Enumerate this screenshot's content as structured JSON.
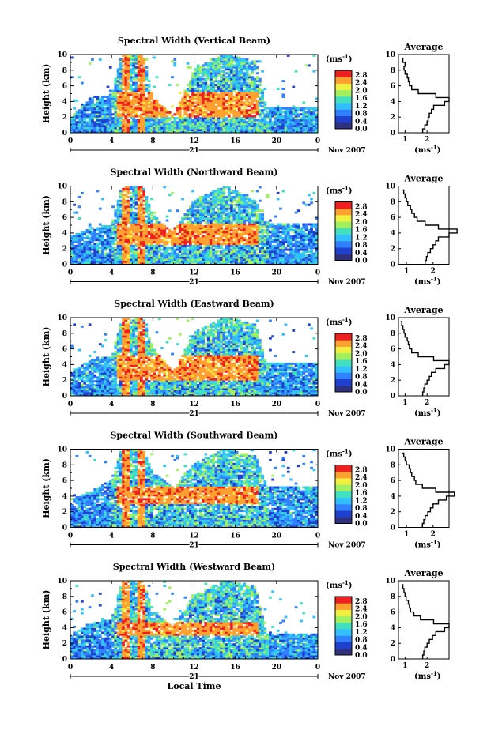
{
  "figure": {
    "colorbar_unit": "(ms",
    "colorbar_unit_exp": "-1",
    "avg_title": "Average",
    "avg_unit": "(ms",
    "avg_unit_exp": "-1",
    "y_label": "Height (km)",
    "x_label": "Local Time",
    "date_label": "Nov 2007",
    "day_label": "21",
    "x_ticks": [
      "0",
      "4",
      "8",
      "12",
      "16",
      "20",
      "0"
    ],
    "y_ticks": [
      "0",
      "2",
      "4",
      "6",
      "8",
      "10"
    ],
    "colorbar_ticks": [
      "0.0",
      "0.4",
      "0.8",
      "1.2",
      "1.6",
      "2.0",
      "2.4",
      "2.8"
    ],
    "avg_x_ticks": [
      "1",
      "2"
    ],
    "colors": {
      "c0": "#303080",
      "c1": "#2040d0",
      "c2": "#3080ff",
      "c3": "#30c0ff",
      "c4": "#40e0c0",
      "c5": "#a0f060",
      "c6": "#f0f040",
      "c7": "#ffa030",
      "c8": "#f02020"
    }
  },
  "chart_data": [
    {
      "type": "heatmap",
      "title": "Spectral Width (Vertical Beam)",
      "xlabel": "",
      "ylabel": "Height (km)",
      "xlim": [
        0,
        24
      ],
      "ylim": [
        0,
        10
      ],
      "clim": [
        0,
        3.0
      ],
      "cloud_top_km": [
        [
          0,
          1.8
        ],
        [
          2,
          4.5
        ],
        [
          4,
          4.8
        ],
        [
          5,
          10
        ],
        [
          7,
          10
        ],
        [
          8,
          4.5
        ],
        [
          10,
          2.0
        ],
        [
          12,
          8
        ],
        [
          15,
          10
        ],
        [
          18,
          9
        ],
        [
          19,
          3
        ],
        [
          24,
          3
        ]
      ],
      "strong_layer": {
        "time_hours": [
          4.5,
          18
        ],
        "height_km": [
          2.0,
          5.0
        ],
        "value_ms": 2.8
      },
      "avg_profile": {
        "title": "Average",
        "height_km": [
          0,
          0.5,
          1,
          1.5,
          2,
          2.5,
          3,
          3.5,
          4,
          4.5,
          5,
          5.5,
          6,
          6.5,
          7,
          7.5,
          8,
          8.5,
          9,
          9.5
        ],
        "value_ms": [
          1.8,
          1.9,
          2.0,
          2.05,
          2.1,
          2.2,
          2.3,
          2.8,
          3.0,
          2.4,
          1.6,
          1.3,
          1.2,
          1.15,
          1.1,
          1.0,
          0.95,
          1.0,
          0.9,
          0.85
        ],
        "xlim": [
          0.7,
          3.0
        ],
        "ylim": [
          0,
          10
        ]
      }
    },
    {
      "type": "heatmap",
      "title": "Spectral Width (Northward Beam)",
      "xlabel": "",
      "ylabel": "Height (km)",
      "xlim": [
        0,
        24
      ],
      "ylim": [
        0,
        10
      ],
      "clim": [
        0,
        3.0
      ],
      "cloud_top_km": [
        [
          0,
          3.5
        ],
        [
          2,
          4.5
        ],
        [
          4,
          5
        ],
        [
          5,
          10
        ],
        [
          7,
          10
        ],
        [
          8,
          6
        ],
        [
          10,
          4
        ],
        [
          12,
          8
        ],
        [
          15,
          10
        ],
        [
          18,
          8
        ],
        [
          19,
          5
        ],
        [
          24,
          5
        ]
      ],
      "strong_layer": {
        "time_hours": [
          4.5,
          18
        ],
        "height_km": [
          2.5,
          5.0
        ],
        "value_ms": 2.8
      },
      "avg_profile": {
        "title": "Average",
        "height_km": [
          0,
          0.5,
          1,
          1.5,
          2,
          2.5,
          3,
          3.5,
          4,
          4.5,
          5,
          5.5,
          6,
          6.5,
          7,
          7.5,
          8,
          8.5,
          9,
          9.5
        ],
        "value_ms": [
          1.7,
          1.75,
          1.8,
          1.9,
          2.0,
          2.1,
          2.2,
          2.6,
          2.9,
          2.2,
          1.7,
          1.4,
          1.3,
          1.2,
          1.15,
          1.05,
          1.0,
          0.95,
          0.9,
          0.85
        ],
        "xlim": [
          0.7,
          2.6
        ],
        "ylim": [
          0,
          10
        ]
      }
    },
    {
      "type": "heatmap",
      "title": "Spectral Width (Eastward Beam)",
      "xlabel": "",
      "ylabel": "Height (km)",
      "xlim": [
        0,
        24
      ],
      "ylim": [
        0,
        10
      ],
      "clim": [
        0,
        3.0
      ],
      "cloud_top_km": [
        [
          0,
          3.0
        ],
        [
          2,
          4.5
        ],
        [
          4,
          5
        ],
        [
          5,
          10
        ],
        [
          7,
          10
        ],
        [
          8,
          6
        ],
        [
          10,
          3
        ],
        [
          12,
          8
        ],
        [
          15,
          10
        ],
        [
          18,
          9
        ],
        [
          19,
          4
        ],
        [
          24,
          4
        ]
      ],
      "strong_layer": {
        "time_hours": [
          4.5,
          18
        ],
        "height_km": [
          2.0,
          5.0
        ],
        "value_ms": 2.8
      },
      "avg_profile": {
        "title": "Average",
        "height_km": [
          0,
          0.5,
          1,
          1.5,
          2,
          2.5,
          3,
          3.5,
          4,
          4.5,
          5,
          5.5,
          6,
          6.5,
          7,
          7.5,
          8,
          8.5,
          9,
          9.5
        ],
        "value_ms": [
          1.8,
          1.85,
          1.9,
          2.0,
          2.1,
          2.2,
          2.4,
          2.8,
          3.0,
          2.3,
          1.6,
          1.3,
          1.2,
          1.15,
          1.1,
          1.0,
          0.95,
          0.9,
          0.85,
          0.8
        ],
        "xlim": [
          0.7,
          3.0
        ],
        "ylim": [
          0,
          10
        ]
      }
    },
    {
      "type": "heatmap",
      "title": "Spectral Width (Southward Beam)",
      "xlabel": "",
      "ylabel": "Height (km)",
      "xlim": [
        0,
        24
      ],
      "ylim": [
        0,
        10
      ],
      "clim": [
        0,
        3.0
      ],
      "cloud_top_km": [
        [
          0,
          3.5
        ],
        [
          2,
          4.5
        ],
        [
          4,
          6
        ],
        [
          5,
          10
        ],
        [
          7,
          10
        ],
        [
          8,
          7
        ],
        [
          10,
          5
        ],
        [
          12,
          8
        ],
        [
          15,
          10
        ],
        [
          18,
          9
        ],
        [
          19,
          5
        ],
        [
          24,
          5
        ]
      ],
      "strong_layer": {
        "time_hours": [
          4.5,
          18
        ],
        "height_km": [
          3.0,
          5.0
        ],
        "value_ms": 2.8
      },
      "avg_profile": {
        "title": "Average",
        "height_km": [
          0,
          0.5,
          1,
          1.5,
          2,
          2.5,
          3,
          3.5,
          4,
          4.5,
          5,
          5.5,
          6,
          6.5,
          7,
          7.5,
          8,
          8.5,
          9,
          9.5
        ],
        "value_ms": [
          1.6,
          1.65,
          1.7,
          1.8,
          1.9,
          2.0,
          2.2,
          2.5,
          2.8,
          2.1,
          1.6,
          1.35,
          1.3,
          1.2,
          1.15,
          1.1,
          1.0,
          0.95,
          0.9,
          0.85
        ],
        "xlim": [
          0.7,
          2.6
        ],
        "ylim": [
          0,
          10
        ]
      }
    },
    {
      "type": "heatmap",
      "title": "Spectral Width (Westward Beam)",
      "xlabel": "Local Time",
      "ylabel": "Height (km)",
      "xlim": [
        0,
        24
      ],
      "ylim": [
        0,
        10
      ],
      "clim": [
        0,
        3.0
      ],
      "cloud_top_km": [
        [
          0,
          3.0
        ],
        [
          2,
          4.5
        ],
        [
          4,
          5
        ],
        [
          5,
          10
        ],
        [
          7,
          10
        ],
        [
          8,
          6
        ],
        [
          10,
          4
        ],
        [
          12,
          8
        ],
        [
          15,
          10
        ],
        [
          18,
          9
        ],
        [
          19,
          3
        ],
        [
          24,
          3
        ]
      ],
      "strong_layer": {
        "time_hours": [
          4.5,
          18
        ],
        "height_km": [
          3.0,
          4.5
        ],
        "value_ms": 2.8
      },
      "avg_profile": {
        "title": "Average",
        "height_km": [
          0,
          0.5,
          1,
          1.5,
          2,
          2.5,
          3,
          3.5,
          4,
          4.5,
          5,
          5.5,
          6,
          6.5,
          7,
          7.5,
          8,
          8.5,
          9,
          9.5
        ],
        "value_ms": [
          1.8,
          1.85,
          1.9,
          2.0,
          2.1,
          2.25,
          2.4,
          2.8,
          3.0,
          2.3,
          1.7,
          1.4,
          1.25,
          1.2,
          1.15,
          1.05,
          1.0,
          0.95,
          0.9,
          0.85
        ],
        "xlim": [
          0.7,
          3.0
        ],
        "ylim": [
          0,
          10
        ]
      }
    }
  ]
}
